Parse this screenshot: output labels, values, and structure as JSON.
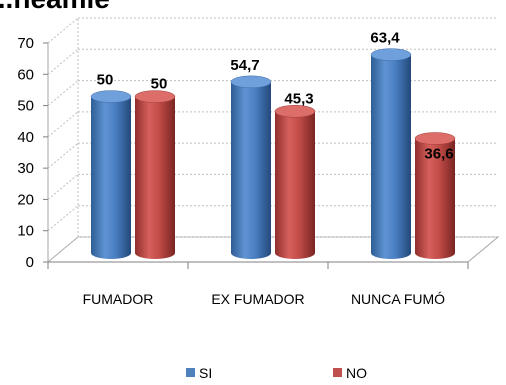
{
  "chart_data": {
    "type": "bar",
    "title": "...neamie",
    "categories": [
      "FUMADOR",
      "EX FUMADOR",
      "NUNCA FUMÓ"
    ],
    "series": [
      {
        "name": "SI",
        "values": [
          50,
          54.7,
          63.4
        ],
        "color": "#4F81BD",
        "value_labels": [
          "50",
          "54,7",
          "63,4"
        ]
      },
      {
        "name": "NO",
        "values": [
          50,
          45.3,
          36.6
        ],
        "color": "#C0504D",
        "value_labels": [
          "50",
          "45,3",
          "36,6"
        ]
      }
    ],
    "ylim": [
      0,
      70
    ],
    "yticks": [
      0,
      10,
      20,
      30,
      40,
      50,
      60,
      70
    ],
    "grid": true,
    "legend": "bottom",
    "style": "3d-cylinder"
  }
}
